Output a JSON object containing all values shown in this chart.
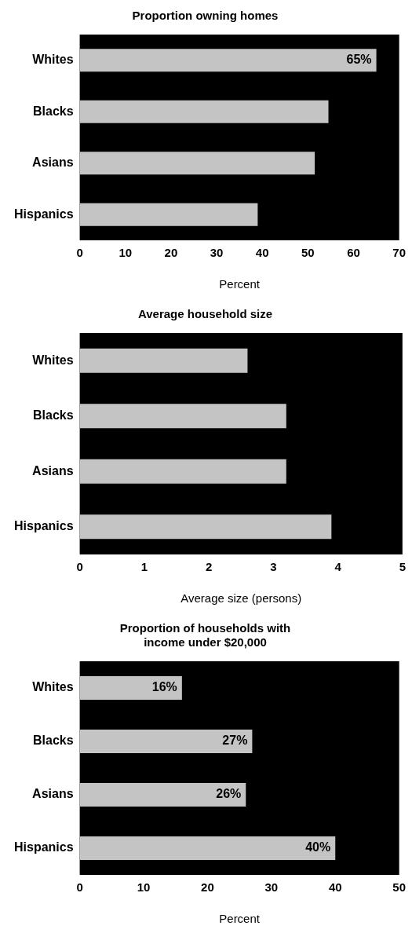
{
  "chart_data": [
    {
      "type": "bar",
      "orientation": "horizontal",
      "title": "Proportion owning homes",
      "xlabel": "Percent",
      "categories": [
        "Whites",
        "Blacks",
        "Asians",
        "Hispanics"
      ],
      "values": [
        65,
        54.5,
        51.5,
        39
      ],
      "value_labels": [
        "65%",
        null,
        null,
        null
      ],
      "color": "#c4c4c4",
      "xlim": [
        0,
        70
      ],
      "xticks": [
        0,
        10,
        20,
        30,
        40,
        50,
        60,
        70
      ],
      "grid": false,
      "legend": false
    },
    {
      "type": "bar",
      "orientation": "horizontal",
      "title": "Average household size",
      "xlabel": "Average size (persons)",
      "categories": [
        "Whites",
        "Blacks",
        "Asians",
        "Hispanics"
      ],
      "values": [
        2.6,
        3.2,
        3.2,
        3.9
      ],
      "color": "#c4c4c4",
      "xlim": [
        0,
        5
      ],
      "xticks": [
        0,
        1,
        2,
        3,
        4,
        5
      ],
      "grid": false,
      "legend": false
    },
    {
      "type": "bar",
      "orientation": "horizontal",
      "title": "Proportion of households with income under $20,000",
      "xlabel": "Percent",
      "categories": [
        "Whites",
        "Blacks",
        "Asians",
        "Hispanics"
      ],
      "values": [
        16,
        27,
        26,
        40
      ],
      "value_labels": [
        "16%",
        "27%",
        "26%",
        "40%"
      ],
      "color": "#c4c4c4",
      "xlim": [
        0,
        50
      ],
      "xticks": [
        0,
        10,
        20,
        30,
        40,
        50
      ],
      "grid": false,
      "legend": false
    }
  ]
}
